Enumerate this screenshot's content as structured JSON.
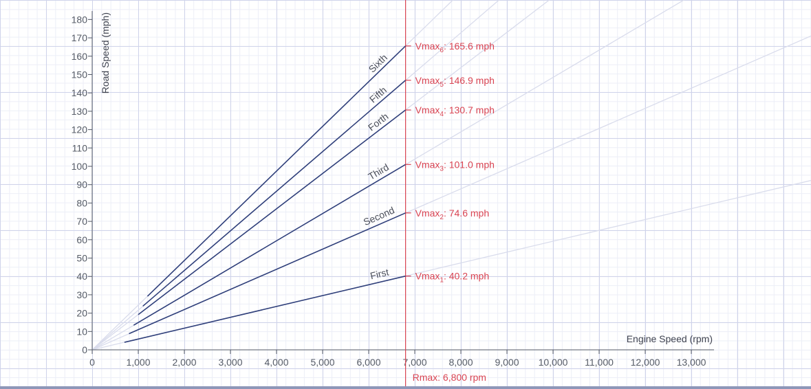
{
  "chart_data": {
    "type": "line",
    "xlabel": "Engine Speed (rpm)",
    "ylabel": "Road Speed (mph)",
    "xlim": [
      0,
      13500
    ],
    "ylim": [
      0,
      185
    ],
    "x_ticks": [
      {
        "value": 0,
        "label": "0"
      },
      {
        "value": 1000,
        "label": "1,000"
      },
      {
        "value": 2000,
        "label": "2,000"
      },
      {
        "value": 3000,
        "label": "3,000"
      },
      {
        "value": 4000,
        "label": "4,000"
      },
      {
        "value": 5000,
        "label": "5,000"
      },
      {
        "value": 6000,
        "label": "6,000"
      },
      {
        "value": 7000,
        "label": "7,000"
      },
      {
        "value": 8000,
        "label": "8,000"
      },
      {
        "value": 9000,
        "label": "9,000"
      },
      {
        "value": 10000,
        "label": "10,000"
      },
      {
        "value": 11000,
        "label": "11,000"
      },
      {
        "value": 12000,
        "label": "12,000"
      },
      {
        "value": 13000,
        "label": "13,000"
      }
    ],
    "y_ticks": [
      {
        "value": 0,
        "label": "0"
      },
      {
        "value": 10,
        "label": "10"
      },
      {
        "value": 20,
        "label": "20"
      },
      {
        "value": 30,
        "label": "30"
      },
      {
        "value": 40,
        "label": "40"
      },
      {
        "value": 50,
        "label": "50"
      },
      {
        "value": 60,
        "label": "60"
      },
      {
        "value": 70,
        "label": "70"
      },
      {
        "value": 80,
        "label": "80"
      },
      {
        "value": 90,
        "label": "90"
      },
      {
        "value": 100,
        "label": "100"
      },
      {
        "value": 110,
        "label": "110"
      },
      {
        "value": 120,
        "label": "120"
      },
      {
        "value": 130,
        "label": "130"
      },
      {
        "value": 140,
        "label": "140"
      },
      {
        "value": 150,
        "label": "150"
      },
      {
        "value": 160,
        "label": "160"
      },
      {
        "value": 170,
        "label": "170"
      },
      {
        "value": 180,
        "label": "180"
      }
    ],
    "rmax": {
      "value": 6800,
      "label": "Rmax: 6,800 rpm"
    },
    "series": [
      {
        "name": "First",
        "x": [
          700,
          6800
        ],
        "y": [
          4.1,
          40.2
        ],
        "vmax_label": "Vmax",
        "vmax_sub": "1",
        "vmax_value": ": 40.2 mph"
      },
      {
        "name": "Second",
        "x": [
          800,
          6800
        ],
        "y": [
          8.8,
          74.6
        ],
        "vmax_label": "Vmax",
        "vmax_sub": "2",
        "vmax_value": ": 74.6 mph"
      },
      {
        "name": "Third",
        "x": [
          900,
          6800
        ],
        "y": [
          13.4,
          101.0
        ],
        "vmax_label": "Vmax",
        "vmax_sub": "3",
        "vmax_value": ": 101.0 mph"
      },
      {
        "name": "Forth",
        "x": [
          1000,
          6800
        ],
        "y": [
          19.2,
          130.7
        ],
        "vmax_label": "Vmax",
        "vmax_sub": "4",
        "vmax_value": ": 130.7 mph"
      },
      {
        "name": "Fifth",
        "x": [
          1100,
          6800
        ],
        "y": [
          23.8,
          146.9
        ],
        "vmax_label": "Vmax",
        "vmax_sub": "5",
        "vmax_value": ": 146.9 mph"
      },
      {
        "name": "Sixth",
        "x": [
          1200,
          6800
        ],
        "y": [
          29.2,
          165.6
        ],
        "vmax_label": "Vmax",
        "vmax_sub": "6",
        "vmax_value": ": 165.6 mph"
      }
    ],
    "colors": {
      "gear_line": "#2f3f7a",
      "extension": "#d9dcec",
      "rmax": "#d94452",
      "axis": "#555b66"
    }
  }
}
